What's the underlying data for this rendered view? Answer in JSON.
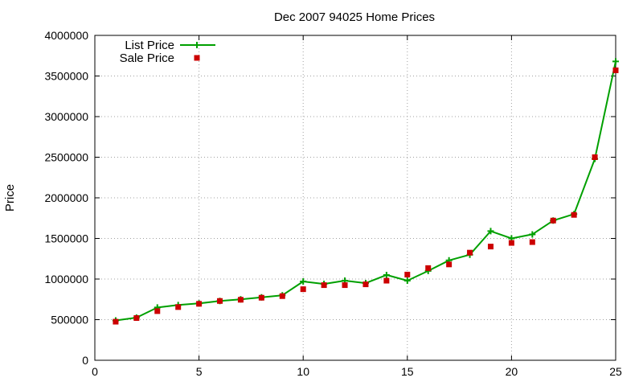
{
  "chart_data": {
    "type": "line",
    "title": "Dec 2007 94025 Home Prices",
    "xlabel": "",
    "ylabel": "Price",
    "xlim": [
      0,
      25
    ],
    "ylim": [
      0,
      4000000
    ],
    "xticks": [
      "0",
      "5",
      "10",
      "15",
      "20",
      "25"
    ],
    "yticks": [
      "0",
      "500000",
      "1000000",
      "1500000",
      "2000000",
      "2500000",
      "3000000",
      "3500000",
      "4000000"
    ],
    "grid": true,
    "legend_position": "top-left",
    "x": [
      1,
      2,
      3,
      4,
      5,
      6,
      7,
      8,
      9,
      10,
      11,
      12,
      13,
      14,
      15,
      16,
      17,
      18,
      19,
      20,
      21,
      22,
      23,
      24,
      25
    ],
    "series": [
      {
        "name": "List Price",
        "style": "line-with-plus",
        "color": "#00a000",
        "values": [
          490000,
          525000,
          650000,
          680000,
          700000,
          730000,
          750000,
          775000,
          800000,
          970000,
          940000,
          980000,
          950000,
          1050000,
          980000,
          1100000,
          1230000,
          1300000,
          1590000,
          1500000,
          1550000,
          1720000,
          1800000,
          2480000,
          3680000
        ]
      },
      {
        "name": "Sale Price",
        "style": "square-points",
        "color": "#cc0000",
        "values": [
          475000,
          520000,
          605000,
          655000,
          695000,
          730000,
          745000,
          770000,
          790000,
          875000,
          925000,
          925000,
          935000,
          980000,
          1055000,
          1135000,
          1180000,
          1325000,
          1400000,
          1445000,
          1455000,
          1720000,
          1790000,
          2500000,
          3570000
        ]
      }
    ]
  }
}
